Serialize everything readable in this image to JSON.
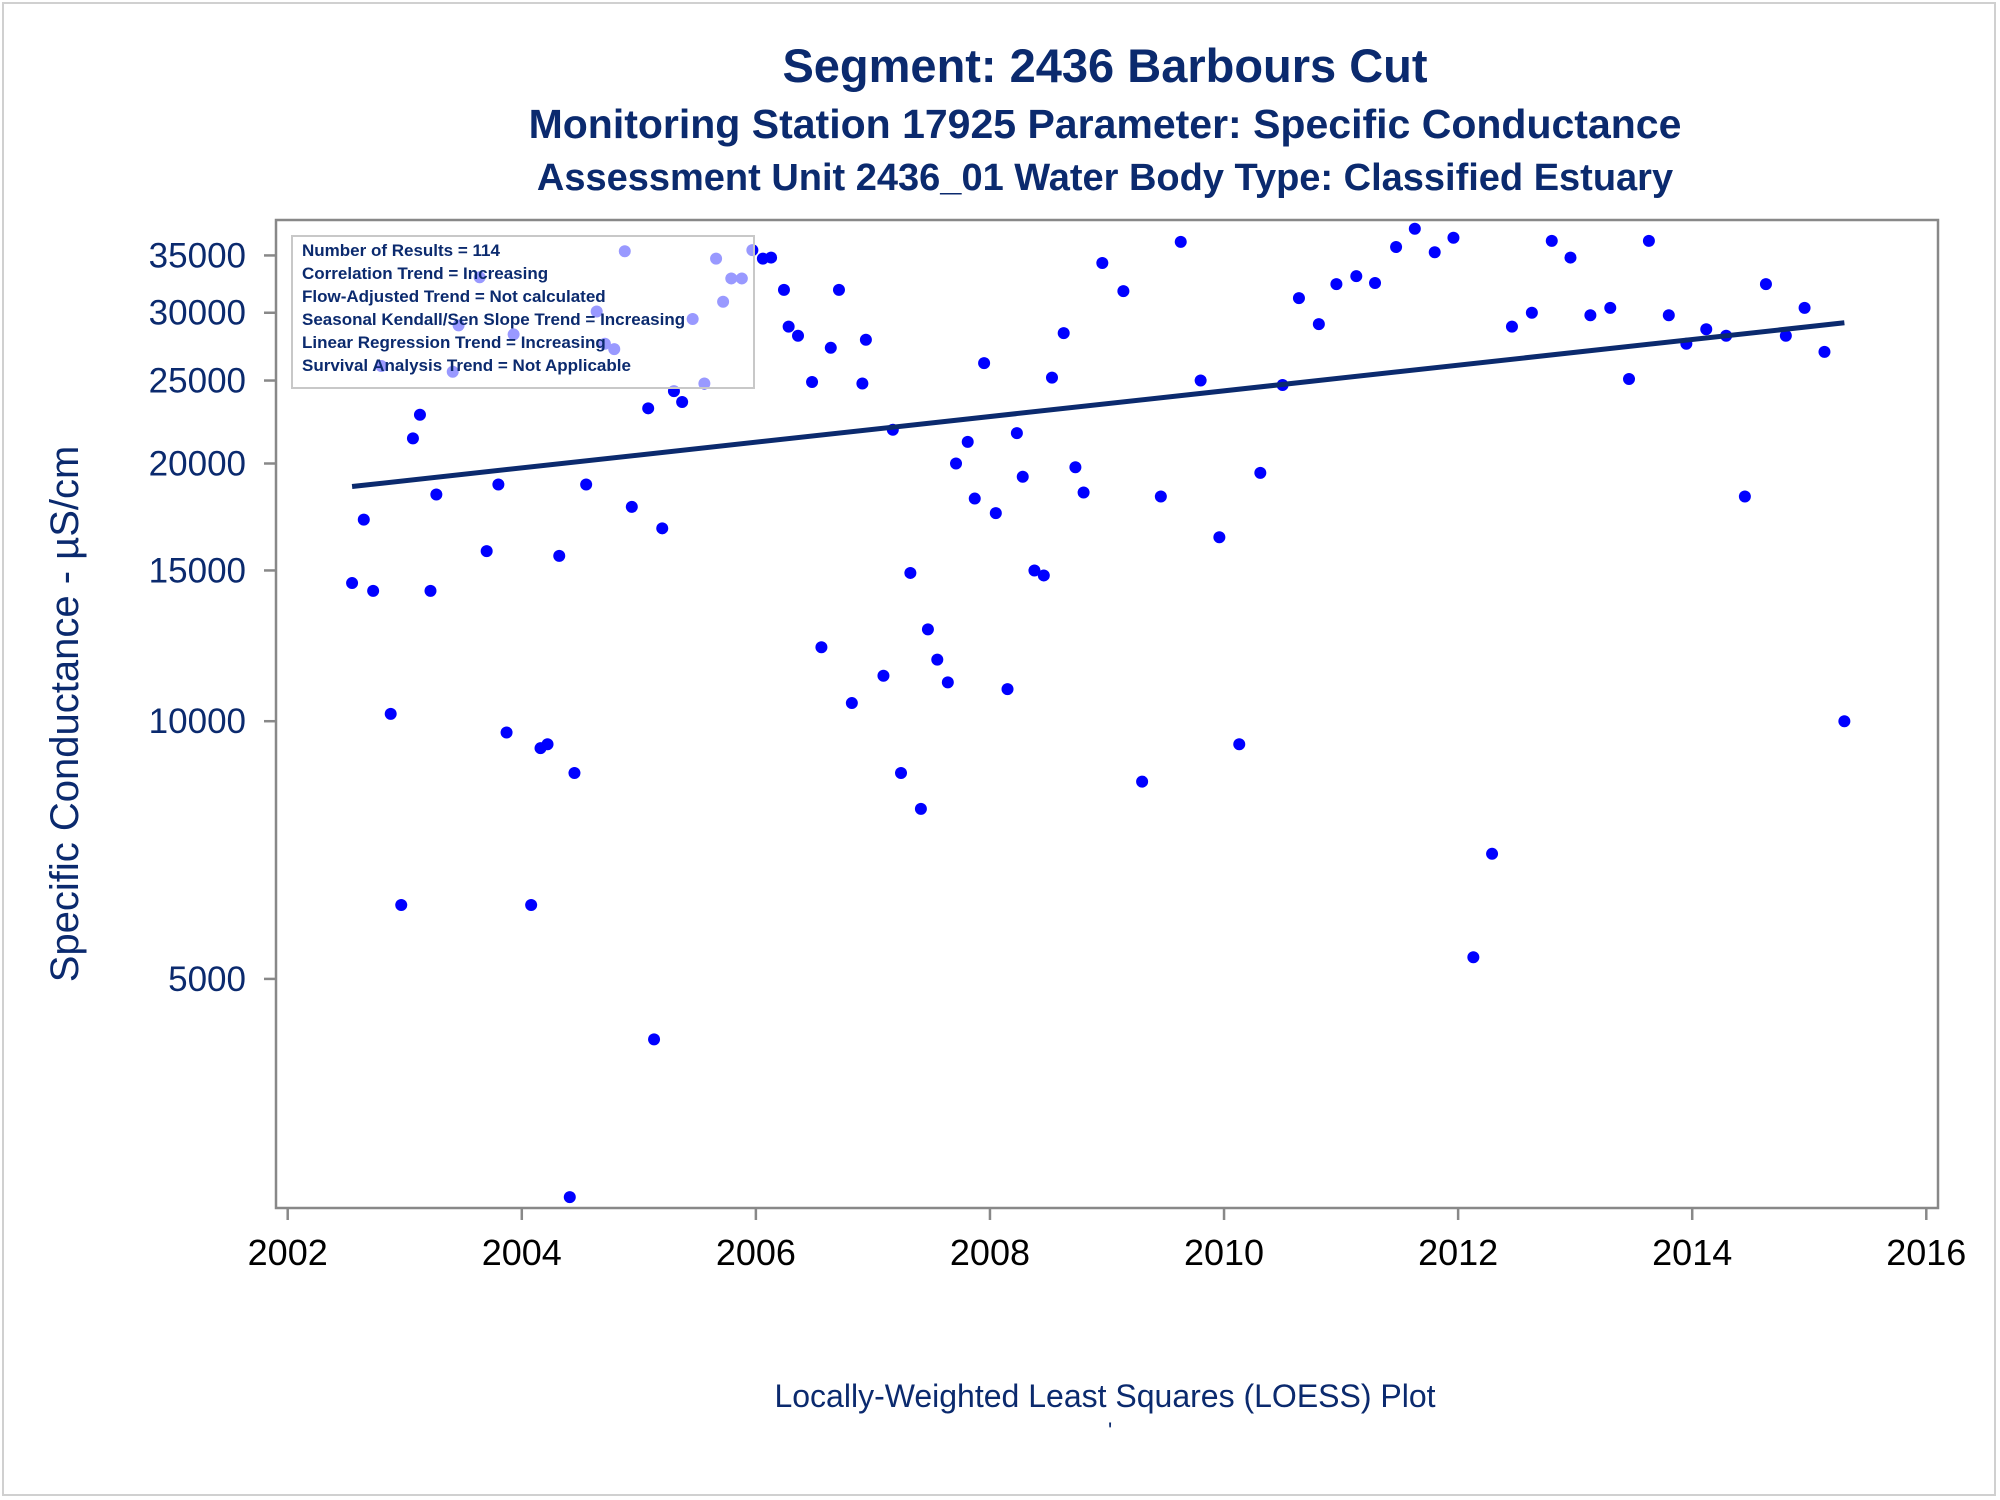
{
  "chart_data": {
    "type": "scatter",
    "title": "Segment: 2436  Barbours Cut",
    "subtitle": "Monitoring Station 17925 Parameter: Specific Conductance",
    "subtitle2": "Assessment Unit 2436_01   Water Body Type: Classified Estuary",
    "xlabel": "",
    "ylabel": "Specific Conductance -  µS/cm",
    "footnote": "Locally-Weighted Least Squares (LOESS) Plot",
    "footnote_mark": "'",
    "yscale": "log",
    "xlim": [
      2001.9,
      2016.1
    ],
    "ylim": [
      2700,
      38500
    ],
    "xticks": [
      2002,
      2004,
      2006,
      2008,
      2010,
      2012,
      2014,
      2016
    ],
    "yticks": [
      5000,
      10000,
      15000,
      20000,
      25000,
      30000,
      35000
    ],
    "stats_box": [
      "Number of Results = 114",
      "Correlation Trend = Increasing",
      "Flow-Adjusted Trend = Not calculated",
      "Seasonal Kendall/Sen Slope Trend = Increasing",
      "Linear Regression Trend = Increasing",
      "Survival Analysis Trend = Not Applicable"
    ],
    "colors": {
      "points": "#0000ff",
      "trend": "#0b2a6e",
      "text": "#0b2a6e",
      "axis": "#888888"
    },
    "trend_line": {
      "x": [
        2002.55,
        2015.3
      ],
      "y": [
        18800,
        29200
      ]
    },
    "points": [
      [
        2002.55,
        14500
      ],
      [
        2002.65,
        17200
      ],
      [
        2002.73,
        14200
      ],
      [
        2002.8,
        26000
      ],
      [
        2002.88,
        10200
      ],
      [
        2002.97,
        6100
      ],
      [
        2003.07,
        21400
      ],
      [
        2003.13,
        22800
      ],
      [
        2003.22,
        14200
      ],
      [
        2003.27,
        18400
      ],
      [
        2003.41,
        25600
      ],
      [
        2003.46,
        29000
      ],
      [
        2003.64,
        33000
      ],
      [
        2003.7,
        15800
      ],
      [
        2003.8,
        18900
      ],
      [
        2003.87,
        9700
      ],
      [
        2003.93,
        28300
      ],
      [
        2004.08,
        6100
      ],
      [
        2004.16,
        9300
      ],
      [
        2004.22,
        9400
      ],
      [
        2004.32,
        15600
      ],
      [
        2004.41,
        2780
      ],
      [
        2004.45,
        8700
      ],
      [
        2004.55,
        18900
      ],
      [
        2004.64,
        30100
      ],
      [
        2004.71,
        27600
      ],
      [
        2004.79,
        27200
      ],
      [
        2004.88,
        35400
      ],
      [
        2004.94,
        17800
      ],
      [
        2005.08,
        23200
      ],
      [
        2005.13,
        4250
      ],
      [
        2005.2,
        16800
      ],
      [
        2005.3,
        24300
      ],
      [
        2005.37,
        23600
      ],
      [
        2005.46,
        29500
      ],
      [
        2005.56,
        24800
      ],
      [
        2005.66,
        34700
      ],
      [
        2005.72,
        30900
      ],
      [
        2005.79,
        32900
      ],
      [
        2005.88,
        32900
      ],
      [
        2005.97,
        35500
      ],
      [
        2006.06,
        34700
      ],
      [
        2006.13,
        34800
      ],
      [
        2006.24,
        31900
      ],
      [
        2006.28,
        28900
      ],
      [
        2006.36,
        28200
      ],
      [
        2006.48,
        24900
      ],
      [
        2006.56,
        12200
      ],
      [
        2006.64,
        27300
      ],
      [
        2006.71,
        31900
      ],
      [
        2006.82,
        10500
      ],
      [
        2006.91,
        24800
      ],
      [
        2006.94,
        27900
      ],
      [
        2007.09,
        11300
      ],
      [
        2007.17,
        21900
      ],
      [
        2007.24,
        8700
      ],
      [
        2007.32,
        14900
      ],
      [
        2007.41,
        7900
      ],
      [
        2007.47,
        12800
      ],
      [
        2007.55,
        11800
      ],
      [
        2007.64,
        11100
      ],
      [
        2007.71,
        20000
      ],
      [
        2007.81,
        21200
      ],
      [
        2007.87,
        18200
      ],
      [
        2007.95,
        26200
      ],
      [
        2008.05,
        17500
      ],
      [
        2008.15,
        10900
      ],
      [
        2008.23,
        21700
      ],
      [
        2008.28,
        19300
      ],
      [
        2008.38,
        15000
      ],
      [
        2008.46,
        14800
      ],
      [
        2008.53,
        25200
      ],
      [
        2008.63,
        28400
      ],
      [
        2008.73,
        19800
      ],
      [
        2008.8,
        18500
      ],
      [
        2008.96,
        34300
      ],
      [
        2009.14,
        31800
      ],
      [
        2009.3,
        8500
      ],
      [
        2009.46,
        18300
      ],
      [
        2009.63,
        36300
      ],
      [
        2009.8,
        25000
      ],
      [
        2009.96,
        16400
      ],
      [
        2010.13,
        9400
      ],
      [
        2010.31,
        19500
      ],
      [
        2010.5,
        24700
      ],
      [
        2010.64,
        31200
      ],
      [
        2010.81,
        29100
      ],
      [
        2010.96,
        32400
      ],
      [
        2011.13,
        33100
      ],
      [
        2011.29,
        32500
      ],
      [
        2011.47,
        35800
      ],
      [
        2011.63,
        37600
      ],
      [
        2011.8,
        35300
      ],
      [
        2011.96,
        36700
      ],
      [
        2012.13,
        5300
      ],
      [
        2012.29,
        7000
      ],
      [
        2012.46,
        28900
      ],
      [
        2012.63,
        30000
      ],
      [
        2012.8,
        36400
      ],
      [
        2012.96,
        34800
      ],
      [
        2013.13,
        29800
      ],
      [
        2013.3,
        30400
      ],
      [
        2013.46,
        25100
      ],
      [
        2013.63,
        36400
      ],
      [
        2013.8,
        29800
      ],
      [
        2013.95,
        27600
      ],
      [
        2014.12,
        28700
      ],
      [
        2014.29,
        28200
      ],
      [
        2014.45,
        18300
      ],
      [
        2014.63,
        32400
      ],
      [
        2014.8,
        28200
      ],
      [
        2014.96,
        30400
      ],
      [
        2015.13,
        27000
      ],
      [
        2015.3,
        10000
      ]
    ]
  }
}
